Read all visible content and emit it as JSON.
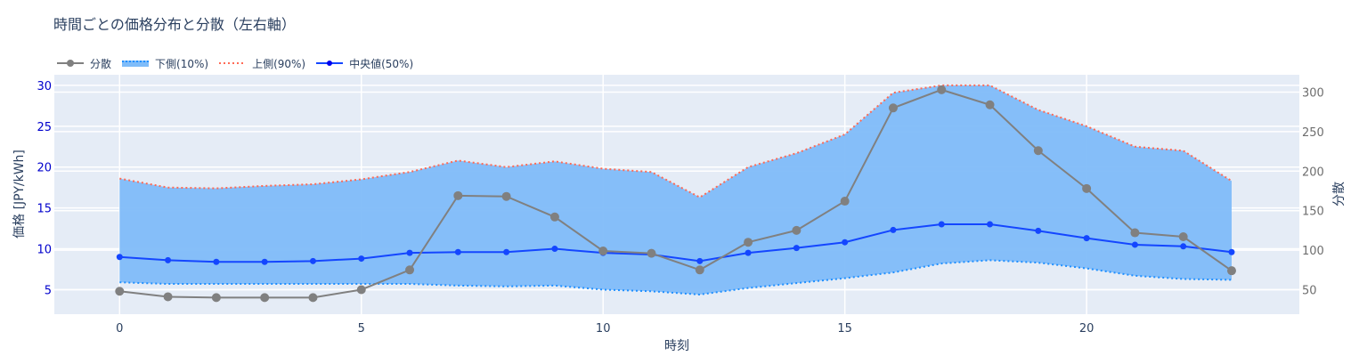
{
  "title": "時間ごとの価格分布と分散（左右軸）",
  "legend": [
    {
      "label": "分散",
      "color": "#808080",
      "style": "line+marker"
    },
    {
      "label": "下側(10%)",
      "color": "#1f8fff",
      "style": "dotted+fill"
    },
    {
      "label": "上側(90%)",
      "color": "#ff6a55",
      "style": "dotted"
    },
    {
      "label": "中央値(50%)",
      "color": "#1446ff",
      "style": "line+marker"
    }
  ],
  "axes": {
    "x_title": "時刻",
    "y_title": "価格 [JPY/kWh]",
    "y2_title": "分散",
    "x_ticks": [
      "0",
      "5",
      "10",
      "15",
      "20"
    ],
    "y_ticks": [
      "5",
      "10",
      "15",
      "20",
      "25",
      "30"
    ],
    "y2_ticks": [
      "50",
      "100",
      "150",
      "200",
      "250",
      "300"
    ]
  },
  "chart_data": {
    "type": "line",
    "title": "時間ごとの価格分布と分散（左右軸）",
    "xlabel": "時刻",
    "ylabel": "価格 [JPY/kWh]",
    "y2label": "分散",
    "x": [
      0,
      1,
      2,
      3,
      4,
      5,
      6,
      7,
      8,
      9,
      10,
      11,
      12,
      13,
      14,
      15,
      16,
      17,
      18,
      19,
      20,
      21,
      22,
      23
    ],
    "xlim": [
      -1.35,
      24.4
    ],
    "ylim": [
      2.0,
      31.3
    ],
    "y2lim": [
      19,
      322
    ],
    "grid": true,
    "legend_position": "top-left, horizontal",
    "series": [
      {
        "name": "分散",
        "axis": "y2",
        "color": "#808080",
        "values": [
          48,
          41,
          40,
          40,
          40,
          50,
          75,
          169,
          168,
          142,
          99,
          96,
          75,
          110,
          125,
          162,
          280,
          303,
          284,
          226,
          178,
          122,
          117,
          74
        ]
      },
      {
        "name": "下側(10%)",
        "axis": "y",
        "color": "#1f8fff",
        "fill": "tonexty",
        "values": [
          5.9,
          5.7,
          5.7,
          5.7,
          5.7,
          5.7,
          5.7,
          5.5,
          5.4,
          5.5,
          5.0,
          4.8,
          4.4,
          5.2,
          5.8,
          6.4,
          7.1,
          8.2,
          8.6,
          8.3,
          7.6,
          6.7,
          6.3,
          6.2
        ]
      },
      {
        "name": "上側(90%)",
        "axis": "y",
        "color": "#ff6a55",
        "values": [
          18.6,
          17.5,
          17.4,
          17.7,
          17.9,
          18.5,
          19.4,
          20.8,
          20.0,
          20.7,
          19.8,
          19.4,
          16.3,
          20.0,
          21.7,
          24.0,
          29.1,
          30.0,
          30.0,
          27.0,
          25.0,
          22.5,
          22.0,
          18.3
        ]
      },
      {
        "name": "中央値(50%)",
        "axis": "y",
        "color": "#1446ff",
        "values": [
          9.0,
          8.6,
          8.4,
          8.4,
          8.5,
          8.8,
          9.5,
          9.6,
          9.6,
          10.0,
          9.5,
          9.3,
          8.5,
          9.5,
          10.1,
          10.8,
          12.3,
          13.0,
          13.0,
          12.2,
          11.3,
          10.5,
          10.3,
          9.6
        ]
      }
    ]
  }
}
